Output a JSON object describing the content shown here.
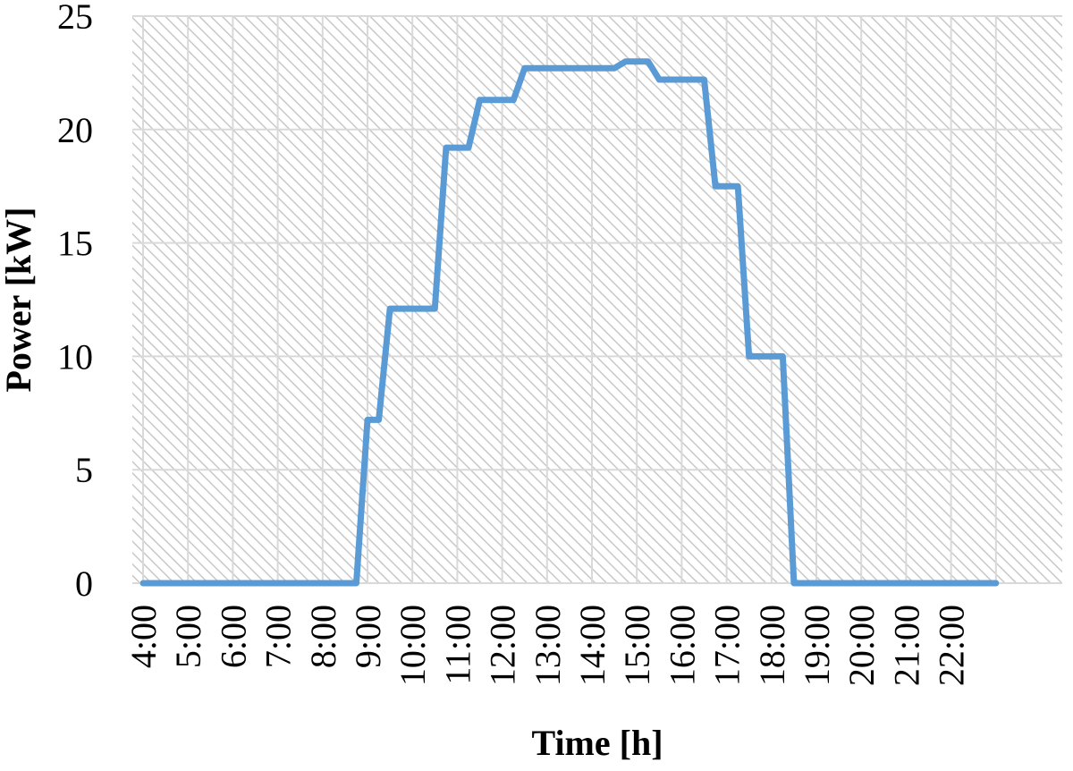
{
  "chart_data": {
    "type": "line",
    "xlabel": "Time [h]",
    "ylabel": "Power [kW]",
    "ylim": [
      0,
      25
    ],
    "yticks": [
      0,
      5,
      10,
      15,
      20,
      25
    ],
    "x_tick_labels": [
      "4:00",
      "5:00",
      "6:00",
      "7:00",
      "8:00",
      "9:00",
      "10:00",
      "11:00",
      "12:00",
      "13:00",
      "14:00",
      "15:00",
      "16:00",
      "17:00",
      "18:00",
      "19:00",
      "20:00",
      "21:00",
      "22:00"
    ],
    "x_unit": "h",
    "xlim": [
      4.0,
      23.0
    ],
    "grid": true,
    "legend": "none",
    "plot_background": "diagonal hatch",
    "series": [
      {
        "color": "#5b9bd5",
        "points": [
          [
            4.0,
            0
          ],
          [
            8.75,
            0
          ],
          [
            9.0,
            7.2
          ],
          [
            9.25,
            7.2
          ],
          [
            9.5,
            12.1
          ],
          [
            10.5,
            12.1
          ],
          [
            10.75,
            19.2
          ],
          [
            11.25,
            19.2
          ],
          [
            11.5,
            21.3
          ],
          [
            12.25,
            21.3
          ],
          [
            12.5,
            22.7
          ],
          [
            14.5,
            22.7
          ],
          [
            14.75,
            23.0
          ],
          [
            15.25,
            23.0
          ],
          [
            15.5,
            22.2
          ],
          [
            16.5,
            22.2
          ],
          [
            16.75,
            17.5
          ],
          [
            17.25,
            17.5
          ],
          [
            17.5,
            10.0
          ],
          [
            18.25,
            10.0
          ],
          [
            18.5,
            0
          ],
          [
            23.0,
            0
          ]
        ]
      }
    ]
  }
}
